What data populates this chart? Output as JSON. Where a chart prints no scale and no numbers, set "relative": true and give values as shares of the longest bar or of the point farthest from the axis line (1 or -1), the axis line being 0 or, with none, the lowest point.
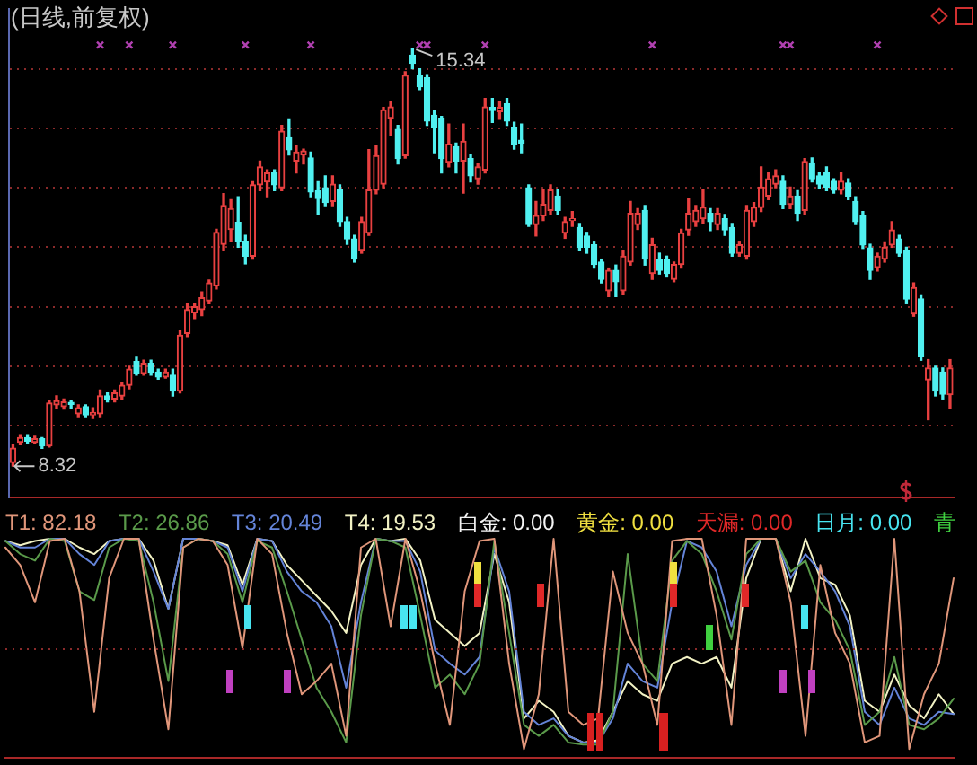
{
  "chart_data": [
    {
      "type": "candlestick",
      "title": "(日线,前复权)",
      "categories": [
        null,
        null,
        null,
        null,
        null,
        null,
        null,
        null,
        null,
        null,
        null,
        null,
        null,
        null,
        null,
        null,
        null,
        null,
        null,
        null,
        null,
        null,
        null,
        null,
        null,
        null,
        null,
        null,
        null,
        null,
        null,
        null,
        null,
        null,
        null,
        null,
        null,
        null,
        null,
        null,
        null,
        null,
        null,
        null,
        null,
        null,
        null,
        null,
        null,
        null,
        null,
        null,
        null,
        null,
        null,
        null,
        null,
        null,
        null,
        null,
        null,
        null,
        null,
        null,
        null,
        null,
        null,
        null,
        null,
        null,
        null,
        null,
        null,
        null,
        null,
        null,
        null,
        null,
        null,
        null,
        null,
        null,
        null,
        null,
        null,
        null,
        null,
        null,
        null,
        null,
        null,
        null,
        null,
        null,
        null,
        null,
        null,
        null,
        null,
        null,
        null,
        null,
        null,
        null,
        null,
        null,
        null,
        null,
        null,
        null,
        null,
        null,
        null,
        null,
        null,
        null,
        null,
        null,
        null,
        null,
        null,
        null,
        null,
        null,
        null,
        null,
        null,
        null,
        null,
        null
      ],
      "ohlc": [
        [
          8.38,
          8.68,
          8.32,
          8.62
        ],
        [
          8.72,
          8.85,
          8.68,
          8.8
        ],
        [
          8.8,
          8.85,
          8.7,
          8.74
        ],
        [
          8.72,
          8.82,
          8.7,
          8.78
        ],
        [
          8.78,
          8.8,
          8.62,
          8.66
        ],
        [
          8.66,
          9.42,
          8.64,
          9.38
        ],
        [
          9.35,
          9.5,
          9.3,
          9.42
        ],
        [
          9.32,
          9.45,
          9.28,
          9.4
        ],
        [
          9.38,
          9.42,
          9.3,
          9.36
        ],
        [
          9.2,
          9.35,
          9.15,
          9.3
        ],
        [
          9.32,
          9.35,
          9.15,
          9.18
        ],
        [
          9.18,
          9.3,
          9.12,
          9.22
        ],
        [
          9.2,
          9.6,
          9.15,
          9.5
        ],
        [
          9.5,
          9.55,
          9.4,
          9.44
        ],
        [
          9.45,
          9.6,
          9.4,
          9.55
        ],
        [
          9.5,
          9.72,
          9.45,
          9.68
        ],
        [
          9.68,
          10,
          9.62,
          9.95
        ],
        [
          10.08,
          10.15,
          9.85,
          9.88
        ],
        [
          9.88,
          10.1,
          9.85,
          10.05
        ],
        [
          10.05,
          10.1,
          9.85,
          9.9
        ],
        [
          9.9,
          9.95,
          9.78,
          9.82
        ],
        [
          9.82,
          9.95,
          9.8,
          9.9
        ],
        [
          9.85,
          9.95,
          9.5,
          9.58
        ],
        [
          9.58,
          10.6,
          9.55,
          10.52
        ],
        [
          10.55,
          11.05,
          10.5,
          10.95
        ],
        [
          10.9,
          11.05,
          10.8,
          11
        ],
        [
          10.95,
          11.25,
          10.85,
          11.15
        ],
        [
          11.1,
          11.45,
          11.05,
          11.4
        ],
        [
          11.35,
          12.3,
          11.3,
          12.25
        ],
        [
          12.05,
          12.9,
          11.95,
          12.7
        ],
        [
          12.3,
          12.8,
          12.1,
          12.65
        ],
        [
          12.42,
          12.85,
          12,
          12.1
        ],
        [
          12.1,
          12.2,
          11.72,
          11.85
        ],
        [
          11.85,
          13.1,
          11.8,
          13.05
        ],
        [
          13.05,
          13.45,
          12.95,
          13.35
        ],
        [
          13.1,
          13.3,
          12.85,
          13.25
        ],
        [
          13.25,
          13.3,
          12.95,
          13.05
        ],
        [
          13,
          14.05,
          12.95,
          13.95
        ],
        [
          13.84,
          14.16,
          13.55,
          13.64
        ],
        [
          13.45,
          13.7,
          13.25,
          13.6
        ],
        [
          13.55,
          13.65,
          13.4,
          13.62
        ],
        [
          13.5,
          13.6,
          12.85,
          12.93
        ],
        [
          12.95,
          13.1,
          12.55,
          12.82
        ],
        [
          13,
          13.2,
          12.7,
          12.75
        ],
        [
          12.77,
          13.2,
          12.7,
          13.06
        ],
        [
          12.96,
          13.05,
          12.35,
          12.43
        ],
        [
          12.43,
          12.5,
          12.05,
          12.14
        ],
        [
          12.14,
          12.2,
          11.75,
          11.8
        ],
        [
          11.95,
          12.5,
          11.9,
          12.43
        ],
        [
          12.24,
          13.64,
          12.2,
          12.96
        ],
        [
          12.96,
          13.7,
          12.9,
          13.54
        ],
        [
          13.06,
          14.35,
          13,
          14.31
        ],
        [
          14.17,
          14.45,
          13.88,
          14.36
        ],
        [
          13.98,
          14.05,
          13.4,
          13.49
        ],
        [
          13.54,
          14.95,
          13.5,
          14.89
        ],
        [
          15.23,
          15.34,
          15,
          15.09
        ],
        [
          14.89,
          15,
          14.65,
          14.7
        ],
        [
          14.85,
          14.9,
          14.05,
          14.12
        ],
        [
          14.22,
          14.3,
          13.59,
          14.02
        ],
        [
          14.17,
          14.2,
          13.25,
          13.49
        ],
        [
          13.43,
          14.07,
          13.35,
          13.73
        ],
        [
          13.69,
          13.75,
          13.25,
          13.45
        ],
        [
          13.45,
          14.07,
          12.91,
          13.78
        ],
        [
          13.49,
          13.55,
          13.1,
          13.2
        ],
        [
          13.15,
          13.4,
          13.06,
          13.35
        ],
        [
          13.3,
          14.5,
          13.25,
          14.36
        ],
        [
          14.35,
          14.5,
          14.1,
          14.3
        ],
        [
          14.28,
          14.45,
          14.15,
          14.35
        ],
        [
          14.41,
          14.5,
          14.05,
          14.12
        ],
        [
          14.02,
          14.1,
          13.65,
          13.73
        ],
        [
          13.8,
          14.07,
          13.59,
          13.75
        ],
        [
          13,
          13.05,
          12.35,
          12.38
        ],
        [
          12.38,
          12.77,
          12.19,
          12.53
        ],
        [
          12.53,
          12.96,
          12.45,
          12.72
        ],
        [
          12.62,
          13.05,
          12.55,
          12.96
        ],
        [
          12.86,
          12.96,
          12.55,
          12.62
        ],
        [
          12.24,
          12.5,
          12.15,
          12.43
        ],
        [
          12.45,
          12.6,
          12.35,
          12.48
        ],
        [
          12.33,
          12.4,
          11.95,
          12
        ],
        [
          12.19,
          12.25,
          11.9,
          12
        ],
        [
          12.04,
          12.1,
          11.65,
          11.71
        ],
        [
          11.75,
          11.8,
          11.4,
          11.46
        ],
        [
          11.27,
          11.65,
          11.17,
          11.61
        ],
        [
          11.61,
          11.7,
          11.17,
          11.42
        ],
        [
          11.27,
          11.95,
          11.2,
          11.85
        ],
        [
          11.75,
          12.77,
          11.7,
          12.57
        ],
        [
          12.38,
          12.65,
          12.3,
          12.57
        ],
        [
          12.62,
          12.7,
          11.7,
          11.8
        ],
        [
          11.56,
          12.15,
          11.46,
          12.04
        ],
        [
          11.8,
          11.9,
          11.55,
          11.61
        ],
        [
          11.8,
          11.85,
          11.5,
          11.56
        ],
        [
          11.46,
          11.75,
          11.42,
          11.71
        ],
        [
          11.71,
          12.3,
          11.65,
          12.24
        ],
        [
          12.29,
          12.82,
          12.2,
          12.57
        ],
        [
          12.43,
          12.7,
          12.35,
          12.62
        ],
        [
          12.48,
          12.96,
          12.4,
          12.67
        ],
        [
          12.57,
          12.65,
          12.28,
          12.43
        ],
        [
          12.38,
          12.65,
          12.3,
          12.57
        ],
        [
          12.48,
          12.55,
          12.2,
          12.29
        ],
        [
          12.33,
          12.4,
          11.85,
          11.9
        ],
        [
          11.9,
          12.1,
          11.85,
          12.04
        ],
        [
          11.85,
          12.7,
          11.8,
          12.62
        ],
        [
          12.43,
          12.75,
          12.35,
          12.67
        ],
        [
          12.67,
          13.35,
          12.6,
          13.01
        ],
        [
          12.86,
          13.25,
          12.8,
          13.15
        ],
        [
          13.06,
          13.3,
          13,
          13.2
        ],
        [
          13.11,
          13.2,
          12.65,
          12.72
        ],
        [
          12.72,
          13.01,
          12.65,
          12.86
        ],
        [
          12.86,
          12.95,
          12.45,
          12.57
        ],
        [
          12.62,
          13.49,
          12.55,
          13.44
        ],
        [
          13.42,
          13.5,
          13.1,
          13.15
        ],
        [
          13.2,
          13.25,
          12.98,
          13.06
        ],
        [
          13.25,
          13.35,
          12.95,
          13.01
        ],
        [
          13.11,
          13.15,
          12.91,
          12.96
        ],
        [
          12.96,
          13.25,
          12.9,
          13.11
        ],
        [
          13.08,
          13.15,
          12.8,
          12.86
        ],
        [
          12.77,
          12.85,
          12.38,
          12.43
        ],
        [
          12.53,
          12.6,
          11.98,
          12.04
        ],
        [
          11.99,
          12.05,
          11.46,
          11.61
        ],
        [
          11.66,
          11.9,
          11.6,
          11.85
        ],
        [
          11.8,
          12.09,
          11.75,
          12
        ],
        [
          12.04,
          12.43,
          12,
          12.29
        ],
        [
          12.14,
          12.2,
          11.85,
          11.9
        ],
        [
          11.95,
          12,
          11.05,
          11.13
        ],
        [
          10.88,
          11.4,
          10.84,
          11.32
        ],
        [
          11.13,
          11.2,
          10.1,
          10.16
        ],
        [
          9.77,
          10.11,
          9.1,
          9.97
        ],
        [
          9.97,
          10,
          9.5,
          9.58
        ],
        [
          9.9,
          9.97,
          9.45,
          9.53
        ],
        [
          9.52,
          10.11,
          9.29,
          9.97
        ]
      ],
      "colors": [
        "#e84040",
        "#e84040",
        "#50f0f0",
        "#e84040",
        "#50f0f0",
        "#e84040",
        "#e84040",
        "#e84040",
        "#50f0f0",
        "#e84040",
        "#50f0f0",
        "#e84040",
        "#e84040",
        "#50f0f0",
        "#e84040",
        "#e84040",
        "#e84040",
        "#50f0f0",
        "#e84040",
        "#50f0f0",
        "#50f0f0",
        "#e84040",
        "#50f0f0",
        "#e84040",
        "#e84040",
        "#e84040",
        "#e84040",
        "#e84040",
        "#e84040",
        "#e84040",
        "#e84040",
        "#50f0f0",
        "#50f0f0",
        "#e84040",
        "#e84040",
        "#e84040",
        "#50f0f0",
        "#e84040",
        "#50f0f0",
        "#e84040",
        "#e84040",
        "#50f0f0",
        "#50f0f0",
        "#50f0f0",
        "#e84040",
        "#50f0f0",
        "#50f0f0",
        "#50f0f0",
        "#e84040",
        "#e84040",
        "#e84040",
        "#e84040",
        "#e84040",
        "#50f0f0",
        "#e84040",
        "#50f0f0",
        "#50f0f0",
        "#50f0f0",
        "#50f0f0",
        "#50f0f0",
        "#e84040",
        "#50f0f0",
        "#e84040",
        "#50f0f0",
        "#e84040",
        "#e84040",
        "#50f0f0",
        "#e84040",
        "#50f0f0",
        "#50f0f0",
        "#50f0f0",
        "#50f0f0",
        "#e84040",
        "#e84040",
        "#e84040",
        "#50f0f0",
        "#e84040",
        "#e84040",
        "#50f0f0",
        "#50f0f0",
        "#50f0f0",
        "#50f0f0",
        "#e84040",
        "#50f0f0",
        "#e84040",
        "#e84040",
        "#e84040",
        "#50f0f0",
        "#e84040",
        "#50f0f0",
        "#50f0f0",
        "#e84040",
        "#e84040",
        "#e84040",
        "#e84040",
        "#e84040",
        "#50f0f0",
        "#e84040",
        "#50f0f0",
        "#50f0f0",
        "#e84040",
        "#e84040",
        "#e84040",
        "#e84040",
        "#e84040",
        "#e84040",
        "#50f0f0",
        "#e84040",
        "#50f0f0",
        "#e84040",
        "#50f0f0",
        "#50f0f0",
        "#50f0f0",
        "#50f0f0",
        "#e84040",
        "#50f0f0",
        "#50f0f0",
        "#50f0f0",
        "#50f0f0",
        "#e84040",
        "#e84040",
        "#e84040",
        "#50f0f0",
        "#50f0f0",
        "#e84040",
        "#50f0f0",
        "#e84040",
        "#50f0f0",
        "#50f0f0",
        "#e84040"
      ],
      "ylim": [
        7.8,
        16
      ],
      "yticks": [
        {
          "value": 9,
          "label": null
        },
        {
          "value": 10,
          "label": null
        },
        {
          "value": 11,
          "label": null
        },
        {
          "value": 12,
          "label": null
        },
        {
          "value": 13,
          "label": null
        },
        {
          "value": 14,
          "label": null
        },
        {
          "value": 15,
          "label": null
        }
      ],
      "grid": "y",
      "tick_labels": false,
      "annotations": [
        "15.34",
        "8.32"
      ],
      "series": [
        {
          "type": "scatter",
          "color": "#b040b0",
          "marker": "cross",
          "values": [
            null,
            null,
            null,
            null,
            null,
            null,
            null,
            null,
            null,
            null,
            null,
            null,
            15.4,
            null,
            null,
            null,
            15.4,
            null,
            null,
            null,
            null,
            null,
            15.4,
            null,
            null,
            null,
            null,
            null,
            null,
            null,
            null,
            null,
            15.4,
            null,
            null,
            null,
            null,
            null,
            null,
            null,
            null,
            15.4,
            null,
            null,
            null,
            null,
            null,
            null,
            null,
            null,
            null,
            null,
            null,
            null,
            null,
            null,
            15.4,
            15.4,
            null,
            null,
            null,
            null,
            null,
            null,
            null,
            15.4,
            null,
            null,
            null,
            null,
            null,
            null,
            null,
            null,
            null,
            null,
            null,
            null,
            null,
            null,
            null,
            null,
            null,
            null,
            null,
            null,
            null,
            null,
            15.4,
            null,
            null,
            null,
            null,
            null,
            null,
            null,
            null,
            null,
            null,
            null,
            null,
            null,
            null,
            null,
            null,
            null,
            15.4,
            15.4,
            null,
            null,
            null,
            null,
            null,
            null,
            null,
            null,
            null,
            null,
            null,
            15.4,
            null,
            null,
            null,
            null,
            null,
            null,
            null,
            null,
            null,
            null
          ]
        }
      ]
    },
    {
      "type": "line",
      "relative": true,
      "tick_labels": false,
      "categories": [
        null,
        null,
        null,
        null,
        null,
        null,
        null,
        null,
        null,
        null,
        null,
        null,
        null,
        null,
        null,
        null,
        null,
        null,
        null,
        null,
        null,
        null,
        null,
        null,
        null,
        null,
        null,
        null,
        null,
        null,
        null,
        null,
        null,
        null,
        null,
        null,
        null,
        null,
        null,
        null,
        null,
        null,
        null,
        null,
        null,
        null,
        null,
        null,
        null,
        null,
        null,
        null,
        null,
        null,
        null,
        null,
        null,
        null,
        null,
        null,
        null,
        null,
        null,
        null,
        null
      ],
      "annotations": [
        "白金: 0.00",
        "黄金: 0.00",
        "天漏: 0.00",
        "日月: 0.00",
        "青"
      ],
      "ref_lines": [
        {
          "axis": "y",
          "value": 0.5,
          "color": "#8a2a2a",
          "line_style": "dotted"
        }
      ],
      "series": [
        {
          "name": "T1: 82.18",
          "type": "line",
          "color": "#e0967a",
          "values": [
            0.96,
            0.88,
            0.71,
            0.99,
            1,
            0.76,
            0.21,
            0.82,
            1,
            1,
            0.54,
            0.13,
            0.96,
            1,
            0.99,
            0.88,
            0.5,
            1,
            0.93,
            0.57,
            0.29,
            0.35,
            0.43,
            0.1,
            0.96,
            1,
            0.6,
            1,
            0.76,
            0.43,
            0.15,
            0.76,
            0.99,
            1,
            0.43,
            0.04,
            0.29,
            1,
            0.21,
            0.15,
            0.18,
            0.85,
            0.57,
            0.43,
            0.15,
            0.99,
            1,
            1,
            0.65,
            0.15,
            1,
            1,
            1,
            0.71,
            0.1,
            0.88,
            0.57,
            0.43,
            0.07,
            0.1,
            1,
            0.04,
            0.29,
            0.43,
            0.82
          ]
        },
        {
          "name": "T2: 26.86",
          "type": "line",
          "color": "#5a9a4a",
          "values": [
            0.99,
            0.93,
            0.9,
            1,
            0.99,
            0.76,
            0.72,
            0.96,
            1,
            0.99,
            0.71,
            0.35,
            0.96,
            1,
            0.99,
            0.93,
            0.71,
            0.99,
            0.96,
            0.76,
            0.54,
            0.32,
            0.21,
            0.07,
            0.65,
            1,
            0.99,
            0.96,
            0.65,
            0.32,
            0.38,
            0.29,
            0.43,
            0.99,
            0.57,
            0.15,
            0.1,
            0.15,
            0.07,
            0.06,
            0.06,
            0.21,
            0.93,
            0.43,
            0.35,
            0.9,
            0.99,
            0.93,
            0.76,
            0.54,
            0.93,
            1,
            1,
            0.85,
            0.9,
            0.71,
            0.63,
            0.49,
            0.15,
            0.21,
            0.46,
            0.15,
            0.13,
            0.18,
            0.27
          ]
        },
        {
          "name": "T3: 20.49",
          "type": "line",
          "color": "#6484d8",
          "values": [
            0.99,
            0.96,
            0.96,
            1,
            1,
            0.93,
            0.88,
            0.99,
            1,
            1,
            0.85,
            0.68,
            1,
            1,
            0.99,
            0.96,
            0.76,
            1,
            0.99,
            0.85,
            0.76,
            0.71,
            0.6,
            0.32,
            0.71,
            1,
            0.99,
            0.99,
            0.85,
            0.49,
            0.43,
            0.38,
            0.46,
            0.96,
            0.76,
            0.21,
            0.15,
            0.18,
            0.1,
            0.07,
            0.07,
            0.18,
            0.43,
            0.35,
            0.32,
            0.71,
            0.99,
            0.96,
            0.85,
            0.6,
            0.88,
            1,
            1,
            0.82,
            0.93,
            0.85,
            0.76,
            0.6,
            0.21,
            0.15,
            0.32,
            0.18,
            0.15,
            0.21,
            0.2
          ]
        },
        {
          "name": "T4: 19.53",
          "type": "line",
          "color": "#f2f2c4",
          "values": [
            0.99,
            0.97,
            0.99,
            1,
            1,
            0.96,
            0.93,
            0.99,
            1,
            1,
            0.9,
            0.68,
            1,
            1,
            0.99,
            0.97,
            0.79,
            1,
            0.99,
            0.88,
            0.81,
            0.74,
            0.67,
            0.57,
            0.88,
            1,
            0.99,
            1,
            0.9,
            0.63,
            0.57,
            0.51,
            0.57,
            0.93,
            0.71,
            0.18,
            0.26,
            0.21,
            0.1,
            0.07,
            0.08,
            0.21,
            0.35,
            0.29,
            0.26,
            0.43,
            0.46,
            0.43,
            0.46,
            0.32,
            0.82,
            1,
            1,
            0.76,
            1,
            0.82,
            0.79,
            0.65,
            0.26,
            0.21,
            0.38,
            0.24,
            0.18,
            0.29,
            0.2
          ]
        }
      ]
    }
  ]
}
